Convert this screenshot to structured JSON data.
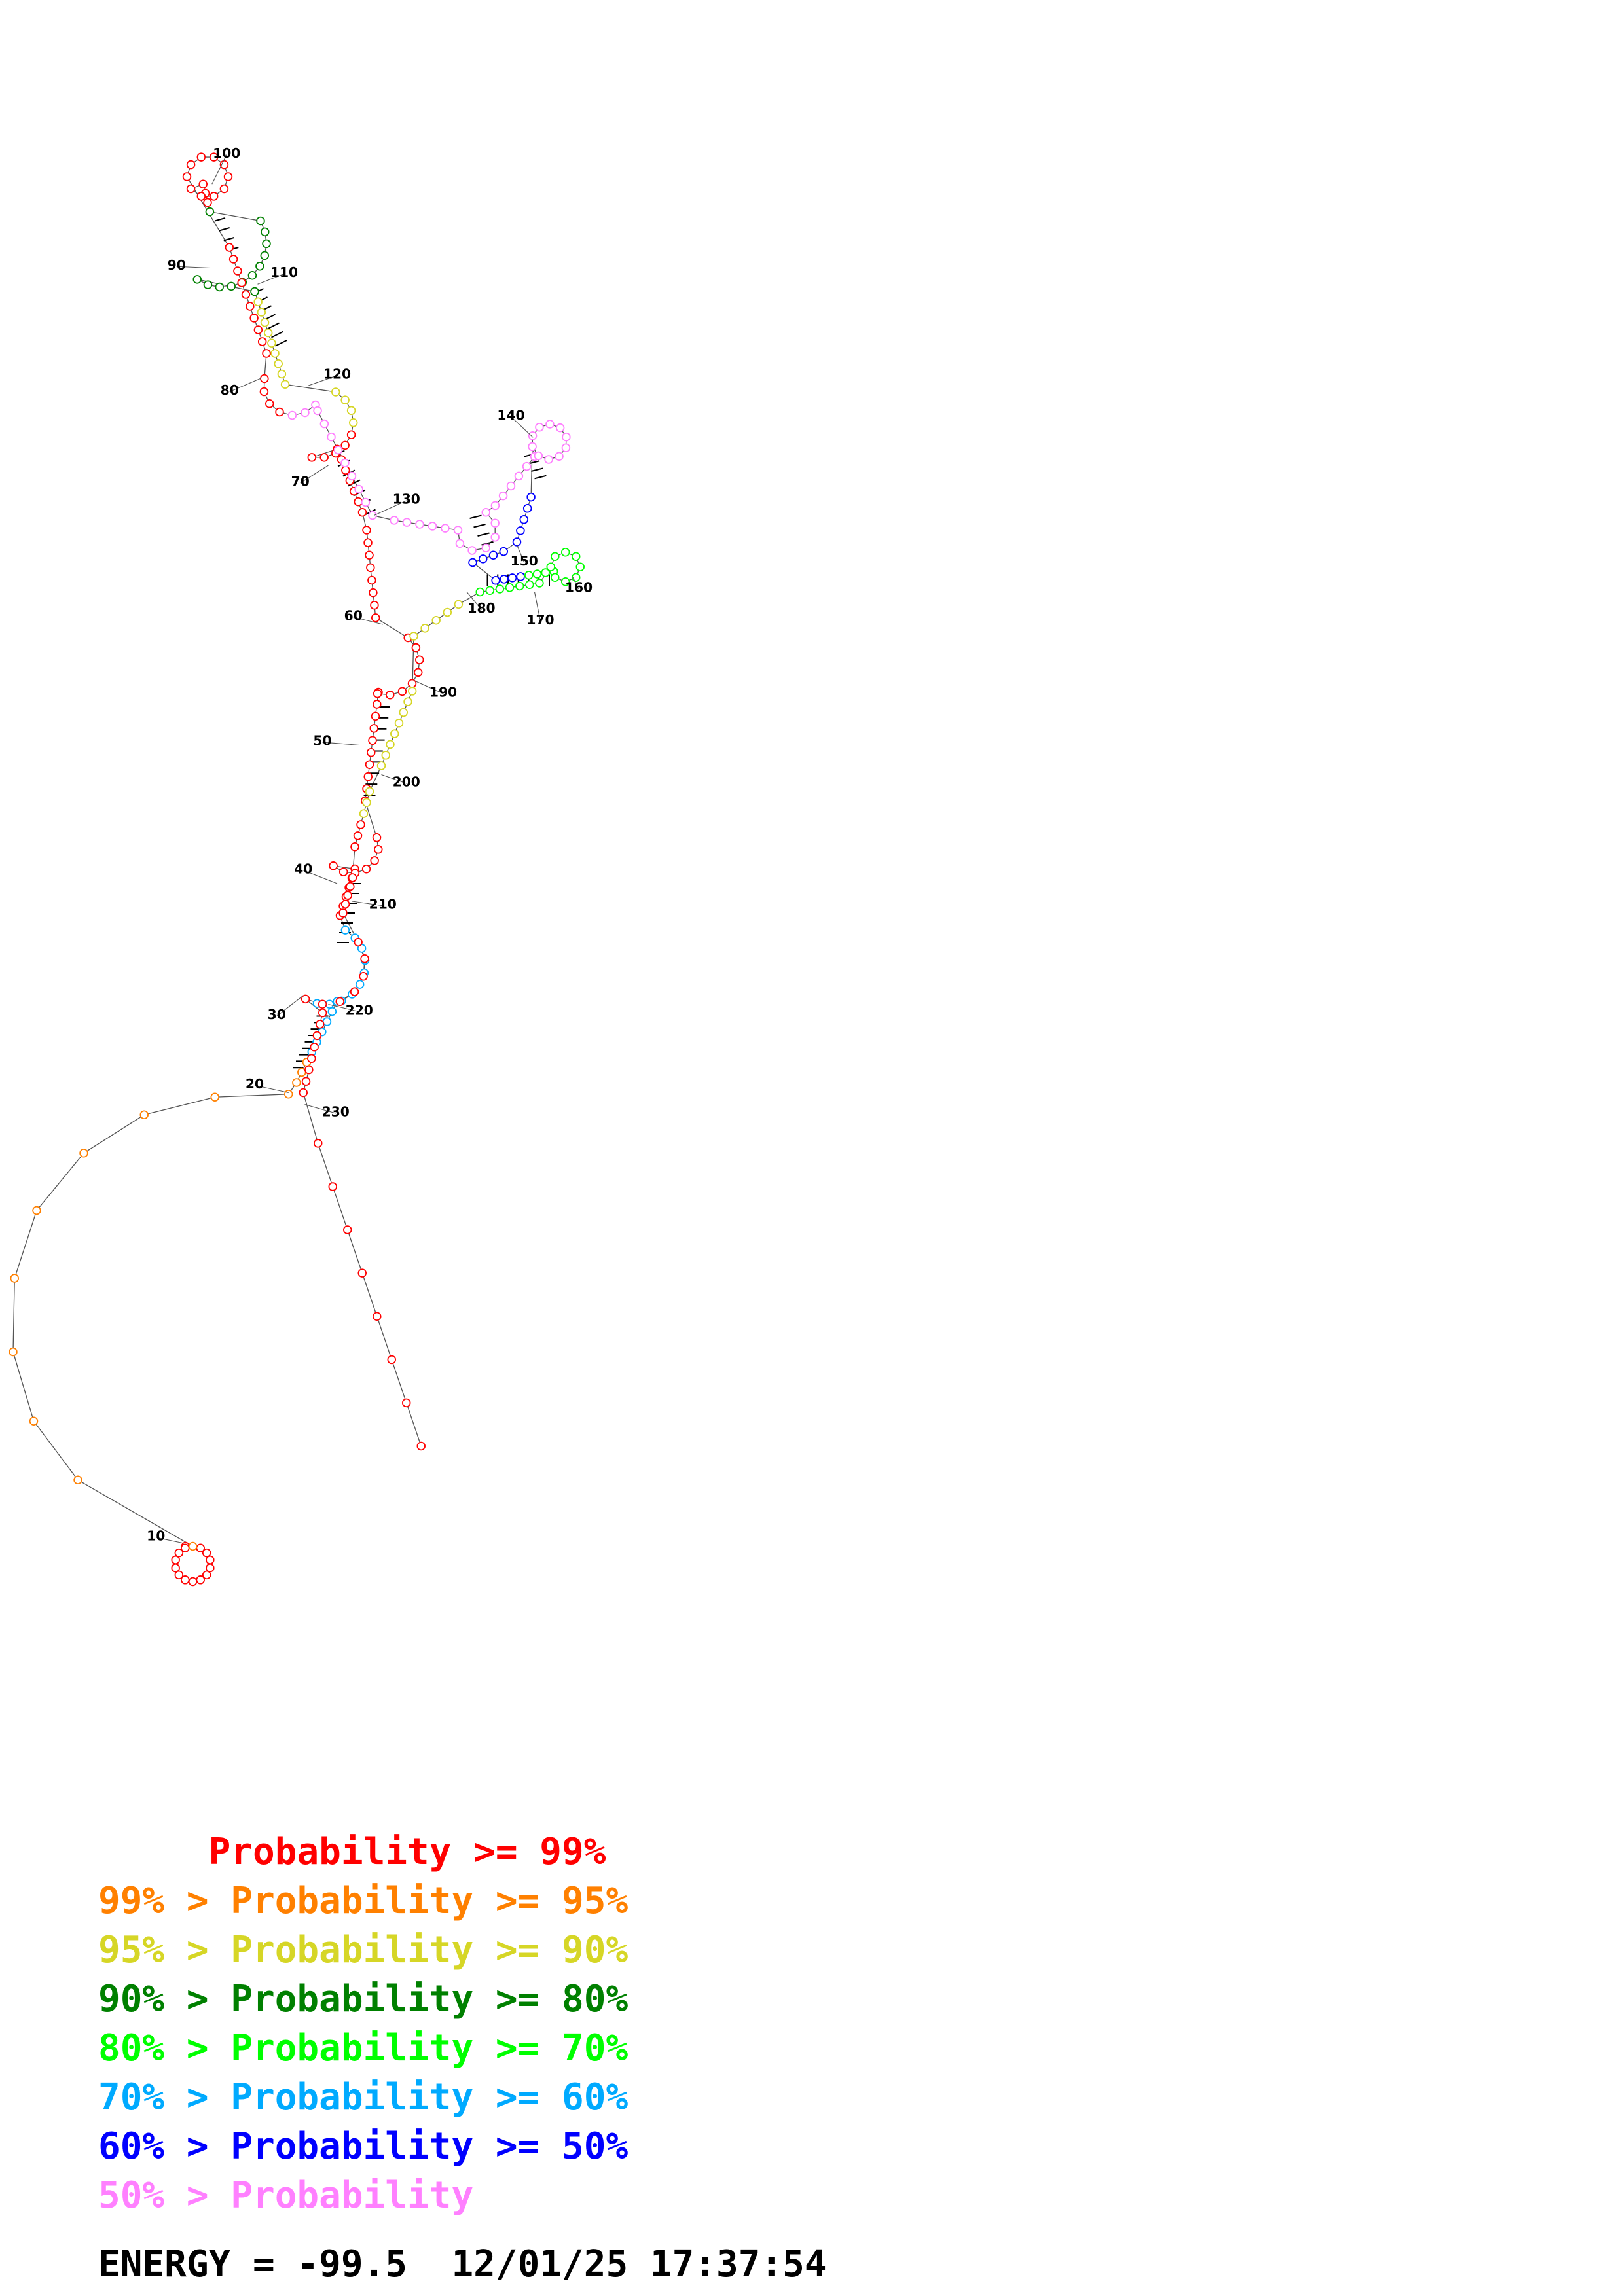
{
  "structure": {
    "position_labels": [
      "10",
      "20",
      "30",
      "40",
      "50",
      "60",
      "70",
      "80",
      "90",
      "100",
      "110",
      "120",
      "130",
      "140",
      "150",
      "160",
      "170",
      "180",
      "190",
      "200",
      "210",
      "220",
      "230"
    ]
  },
  "legend": {
    "entries": [
      {
        "text": "     Probability >= 99%",
        "color": "#ff0000"
      },
      {
        "text": "99% > Probability >= 95%",
        "color": "#ff8000"
      },
      {
        "text": "95% > Probability >= 90%",
        "color": "#d6d626"
      },
      {
        "text": "90% > Probability >= 80%",
        "color": "#008000"
      },
      {
        "text": "80% > Probability >= 70%",
        "color": "#00ff00"
      },
      {
        "text": "70% > Probability >= 60%",
        "color": "#00aaff"
      },
      {
        "text": "60% > Probability >= 50%",
        "color": "#0000ff"
      },
      {
        "text": "50% > Probability",
        "color": "#ff80ff"
      }
    ]
  },
  "footer": {
    "energy_text": "ENERGY = -99.5  12/01/25 17:37:54"
  },
  "colors": {
    "backbone": "#555555",
    "pair_bond": "#000000"
  }
}
